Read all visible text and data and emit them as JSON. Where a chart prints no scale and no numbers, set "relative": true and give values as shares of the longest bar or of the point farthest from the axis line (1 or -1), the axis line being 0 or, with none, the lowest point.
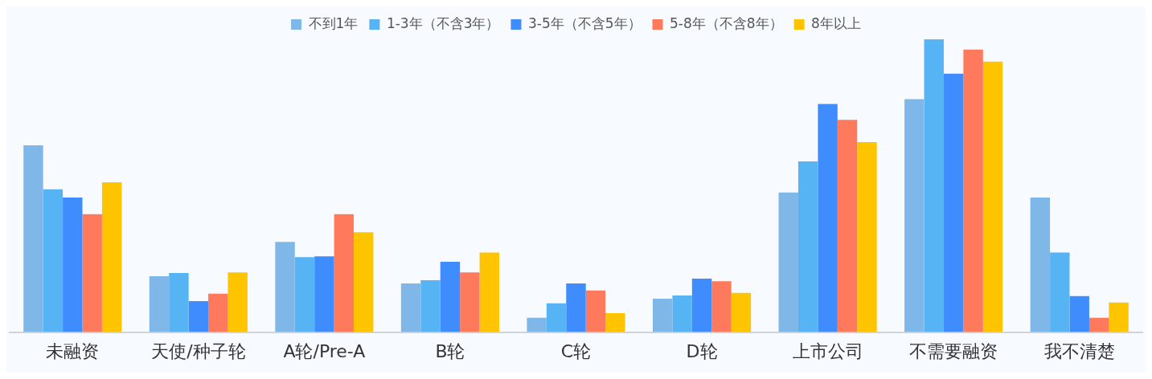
{
  "chart_data": {
    "type": "bar",
    "relative": true,
    "legend": "top",
    "grid": false,
    "categories": [
      "未融资",
      "天使/种子轮",
      "A轮/Pre-A",
      "B轮",
      "C轮",
      "D轮",
      "上市公司",
      "不需要融资",
      "我不清楚"
    ],
    "series": [
      {
        "name": "不到1年",
        "color": "#7fb8e8",
        "values": [
          0.638,
          0.191,
          0.308,
          0.166,
          0.049,
          0.114,
          0.477,
          0.796,
          0.46
        ]
      },
      {
        "name": "1-3年（不含3年）",
        "color": "#56b4f5",
        "values": [
          0.488,
          0.202,
          0.256,
          0.177,
          0.098,
          0.125,
          0.583,
          1,
          0.272
        ]
      },
      {
        "name": "3-5年（不含5年）",
        "color": "#3f8cff",
        "values": [
          0.46,
          0.106,
          0.259,
          0.24,
          0.166,
          0.183,
          0.779,
          0.883,
          0.123
        ]
      },
      {
        "name": "5-8年（不含8年）",
        "color": "#ff7a5c",
        "values": [
          0.403,
          0.131,
          0.403,
          0.204,
          0.142,
          0.174,
          0.725,
          0.965,
          0.049
        ]
      },
      {
        "name": "8年以上",
        "color": "#ffc400",
        "values": [
          0.512,
          0.204,
          0.341,
          0.272,
          0.065,
          0.134,
          0.649,
          0.924,
          0.101
        ]
      }
    ]
  }
}
